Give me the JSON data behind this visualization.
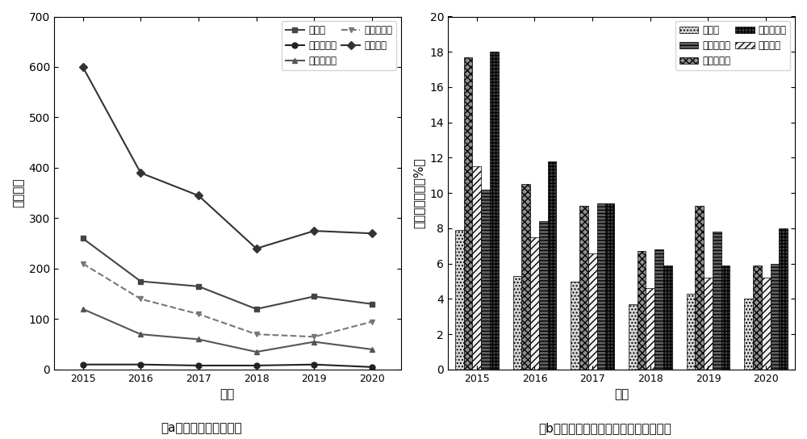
{
  "years": [
    2015,
    2016,
    2017,
    2018,
    2019,
    2020
  ],
  "line_data": {
    "yu_liang": [
      260,
      175,
      165,
      120,
      145,
      130
    ],
    "he_dao_ww": [
      10,
      10,
      8,
      8,
      10,
      5
    ],
    "he_dao_ws": [
      120,
      70,
      60,
      35,
      55,
      40
    ],
    "shui_ku": [
      210,
      140,
      110,
      70,
      65,
      95
    ],
    "quan_bu": [
      600,
      390,
      345,
      240,
      275,
      270
    ]
  },
  "line_labels": {
    "yu_liang": "雨量站",
    "he_dao_ww": "河道水文站",
    "he_dao_ws": "河道水位站",
    "shui_ku": "水库水文站",
    "quan_bu": "全部站点"
  },
  "bar_data": {
    "yu_liang": [
      7.9,
      5.3,
      5.0,
      3.7,
      4.3,
      4.0
    ],
    "he_dao_ws": [
      17.7,
      10.5,
      9.3,
      6.7,
      9.3,
      5.9
    ],
    "quan_bu": [
      11.5,
      7.5,
      6.6,
      4.6,
      5.2,
      5.2
    ],
    "he_dao_ww": [
      10.2,
      8.4,
      9.4,
      6.8,
      7.8,
      6.0
    ],
    "shui_ku": [
      18.0,
      11.8,
      9.4,
      5.9,
      5.9,
      8.0
    ]
  },
  "left_ylabel": "站点个数",
  "left_xlabel": "年份",
  "left_caption": "（a）各类异常站点数量",
  "right_ylabel": "异常站点占比（%）",
  "right_xlabel": "年份",
  "right_caption": "（b）各类异常站点在相应类型站点占比",
  "left_ylim": [
    0,
    700
  ],
  "right_ylim": [
    0,
    20
  ],
  "left_yticks": [
    0,
    100,
    200,
    300,
    400,
    500,
    600,
    700
  ],
  "right_yticks": [
    0,
    2,
    4,
    6,
    8,
    10,
    12,
    14,
    16,
    18,
    20
  ]
}
